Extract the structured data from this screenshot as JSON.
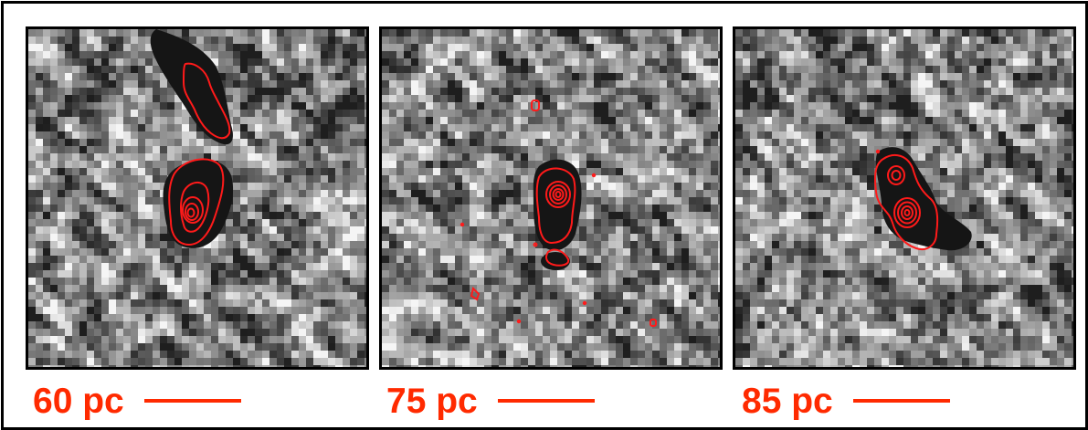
{
  "panels": [
    {
      "id": "panel-1",
      "scale_label": "60 pc",
      "contour_color": "#ff1a1a"
    },
    {
      "id": "panel-2",
      "scale_label": "75 pc",
      "contour_color": "#ff1a1a"
    },
    {
      "id": "panel-3",
      "scale_label": "85 pc",
      "contour_color": "#ff1a1a"
    }
  ],
  "colors": {
    "scale_text": "#ff2a00",
    "frame": "#000000",
    "image_dark": "#151515",
    "image_light": "#f2f2f2"
  }
}
